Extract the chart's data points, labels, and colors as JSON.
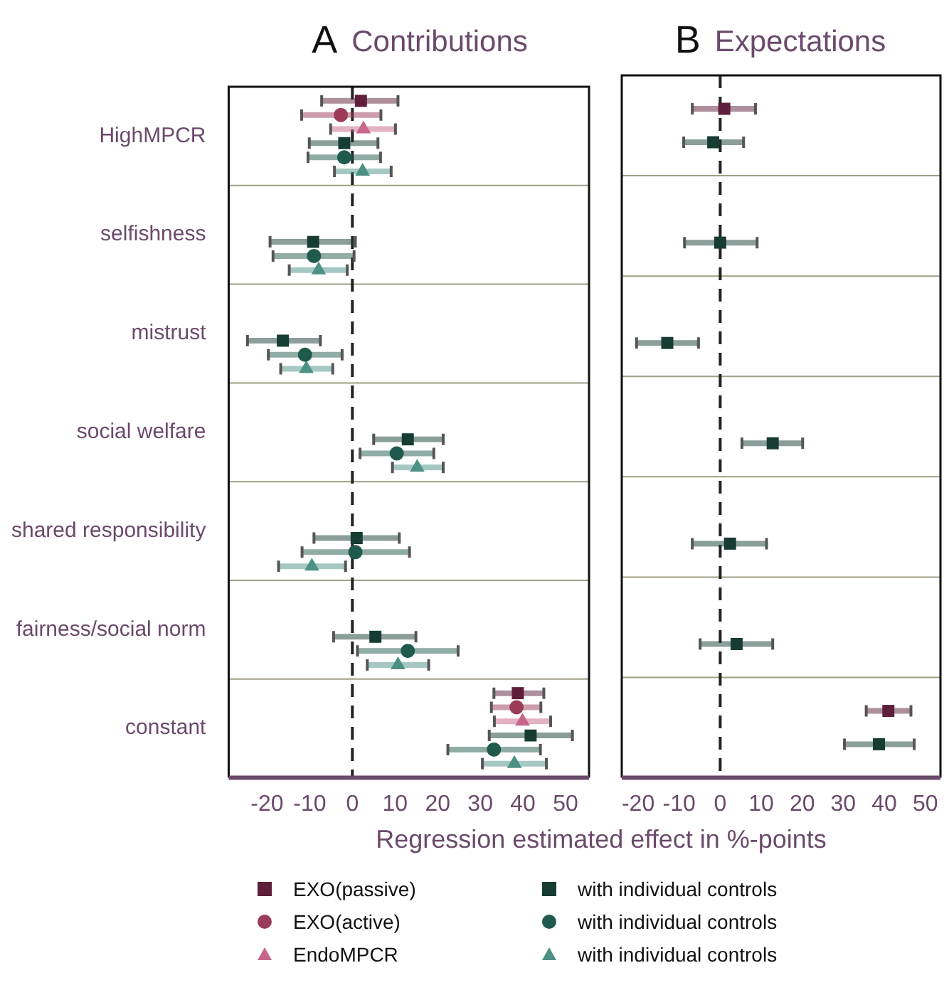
{
  "chart_data": [
    {
      "type": "scatter",
      "orientation": "horizontal",
      "title": "A Contributions",
      "xlabel": "Regression estimated effect in %-points",
      "categories": [
        "HighMPCR",
        "selfishness",
        "mistrust",
        "social welfare",
        "shared responsibility",
        "fairness/social norm",
        "constant"
      ],
      "xlim": [
        -29,
        55.5
      ],
      "xticks": [
        -20,
        -10,
        0,
        10,
        20,
        30,
        40,
        50
      ],
      "grid": "y",
      "legend": "bottom",
      "ref_lines": [
        {
          "axis": "x",
          "value": 0,
          "line_style": "dashed"
        }
      ],
      "series": [
        {
          "name": "EXO(passive)",
          "color": "#5e1f3a",
          "marker": "square",
          "values": [
            2,
            null,
            null,
            null,
            null,
            null,
            38.8
          ],
          "errors": [
            [
              -7.2,
              10.7
            ],
            null,
            null,
            null,
            null,
            null,
            [
              33.2,
              44.9
            ]
          ]
        },
        {
          "name": "EXO(active)",
          "color": "#9b3b5a",
          "marker": "circle",
          "values": [
            -2.7,
            null,
            null,
            null,
            null,
            null,
            38.5
          ],
          "errors": [
            [
              -11.9,
              6.7
            ],
            null,
            null,
            null,
            null,
            null,
            [
              32.6,
              44.2
            ]
          ]
        },
        {
          "name": "EndoMPCR",
          "color": "#c7658a",
          "marker": "triangle",
          "values": [
            2.6,
            null,
            null,
            null,
            null,
            null,
            39.9
          ],
          "errors": [
            [
              -5.1,
              10.1
            ],
            null,
            null,
            null,
            null,
            null,
            [
              33.3,
              46.5
            ]
          ]
        },
        {
          "name": "with individual controls",
          "color": "#173d33",
          "marker": "square",
          "values": [
            -1.9,
            -9.2,
            -16.3,
            13,
            1,
            5.4,
            41.8
          ],
          "errors": [
            [
              -10.1,
              6
            ],
            [
              -19.3,
              0.7
            ],
            [
              -24.6,
              -7.5
            ],
            [
              5,
              21.3
            ],
            [
              -9,
              11
            ],
            [
              -4.4,
              14.9
            ],
            [
              32.1,
              51.6
            ]
          ]
        },
        {
          "name": "with individual controls",
          "color": "#1f5a4c",
          "marker": "circle",
          "values": [
            -1.9,
            -9,
            -11.1,
            10.4,
            0.7,
            13,
            33.2
          ],
          "errors": [
            [
              -10.4,
              6.6
            ],
            [
              -18.6,
              0.4
            ],
            [
              -19.7,
              -2.4
            ],
            [
              1.8,
              19.1
            ],
            [
              -11.8,
              13.4
            ],
            [
              1.2,
              24.8
            ],
            [
              22.4,
              44.1
            ]
          ]
        },
        {
          "name": "with individual controls",
          "color": "#4d9185",
          "marker": "triangle",
          "values": [
            2.4,
            -7.9,
            -10.8,
            15.2,
            -9.5,
            10.7,
            38
          ],
          "errors": [
            [
              -4.2,
              9.1
            ],
            [
              -14.8,
              -1.2
            ],
            [
              -16.8,
              -4.6
            ],
            [
              9.4,
              21.3
            ],
            [
              -17.3,
              -1.6
            ],
            [
              3.5,
              17.9
            ],
            [
              30.5,
              45.5
            ]
          ]
        }
      ]
    },
    {
      "type": "scatter",
      "orientation": "horizontal",
      "title": "B Expectations",
      "xlim": [
        -24,
        53.7
      ],
      "xticks": [
        -20,
        -10,
        0,
        10,
        20,
        30,
        40,
        50
      ],
      "grid": "y",
      "tick_labels": "x",
      "ref_lines": [
        {
          "axis": "x",
          "value": 0,
          "line_style": "dashed"
        }
      ],
      "series": [
        {
          "color": "#5e1f3a",
          "marker": "square",
          "values": [
            1,
            null,
            null,
            null,
            null,
            null,
            41
          ],
          "errors": [
            [
              -6.8,
              8.6
            ],
            null,
            null,
            null,
            null,
            null,
            [
              35.6,
              46.5
            ]
          ]
        },
        {
          "color": "#173d33",
          "marker": "square",
          "values": [
            -1.7,
            0,
            -12.9,
            12.8,
            2.4,
            4,
            38.7
          ],
          "errors": [
            [
              -8.9,
              5.7
            ],
            [
              -8.7,
              9
            ],
            [
              -20.4,
              -5.3
            ],
            [
              5.3,
              20.1
            ],
            [
              -6.8,
              11.3
            ],
            [
              -4.9,
              12.8
            ],
            [
              30.3,
              47.3
            ]
          ]
        }
      ]
    }
  ]
}
